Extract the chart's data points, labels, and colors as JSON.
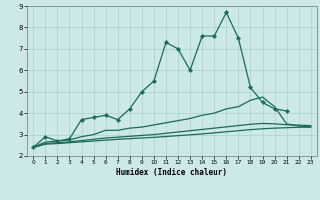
{
  "title": "",
  "xlabel": "Humidex (Indice chaleur)",
  "background_color": "#cce8e8",
  "line_color": "#1a6b5a",
  "grid_color": "#aacfcf",
  "xlim": [
    -0.5,
    23.5
  ],
  "ylim": [
    2,
    9
  ],
  "yticks": [
    2,
    3,
    4,
    5,
    6,
    7,
    8,
    9
  ],
  "xticks": [
    0,
    1,
    2,
    3,
    4,
    5,
    6,
    7,
    8,
    9,
    10,
    11,
    12,
    13,
    14,
    15,
    16,
    17,
    18,
    19,
    20,
    21,
    22,
    23
  ],
  "series": [
    {
      "x": [
        0,
        1,
        2,
        3,
        4,
        5,
        6,
        7,
        8,
        9,
        10,
        11,
        12,
        13,
        14,
        15,
        16,
        17,
        18,
        19,
        20,
        21
      ],
      "y": [
        2.4,
        2.9,
        2.7,
        2.8,
        3.7,
        3.8,
        3.9,
        3.7,
        4.2,
        5.0,
        5.5,
        7.3,
        7.0,
        6.0,
        7.6,
        7.6,
        8.7,
        7.5,
        5.2,
        4.5,
        4.2,
        4.1
      ],
      "marker": true
    },
    {
      "x": [
        0,
        1,
        2,
        3,
        4,
        5,
        6,
        7,
        8,
        9,
        10,
        11,
        12,
        13,
        14,
        15,
        16,
        17,
        18,
        19,
        20,
        21,
        22,
        23
      ],
      "y": [
        2.4,
        2.65,
        2.7,
        2.75,
        2.9,
        3.0,
        3.2,
        3.2,
        3.3,
        3.35,
        3.45,
        3.55,
        3.65,
        3.75,
        3.9,
        4.0,
        4.2,
        4.3,
        4.6,
        4.75,
        4.3,
        3.5,
        3.4,
        3.35
      ],
      "marker": false
    },
    {
      "x": [
        0,
        1,
        2,
        3,
        4,
        5,
        6,
        7,
        8,
        9,
        10,
        11,
        12,
        13,
        14,
        15,
        16,
        17,
        18,
        19,
        20,
        21,
        22,
        23
      ],
      "y": [
        2.4,
        2.58,
        2.62,
        2.66,
        2.72,
        2.78,
        2.84,
        2.88,
        2.92,
        2.96,
        3.0,
        3.06,
        3.12,
        3.18,
        3.24,
        3.3,
        3.36,
        3.42,
        3.48,
        3.52,
        3.5,
        3.46,
        3.44,
        3.42
      ],
      "marker": false
    },
    {
      "x": [
        0,
        1,
        2,
        3,
        4,
        5,
        6,
        7,
        8,
        9,
        10,
        11,
        12,
        13,
        14,
        15,
        16,
        17,
        18,
        19,
        20,
        21,
        22,
        23
      ],
      "y": [
        2.4,
        2.55,
        2.58,
        2.62,
        2.66,
        2.7,
        2.74,
        2.78,
        2.81,
        2.84,
        2.87,
        2.91,
        2.95,
        2.99,
        3.03,
        3.08,
        3.13,
        3.18,
        3.23,
        3.27,
        3.3,
        3.32,
        3.34,
        3.35
      ],
      "marker": false
    }
  ]
}
